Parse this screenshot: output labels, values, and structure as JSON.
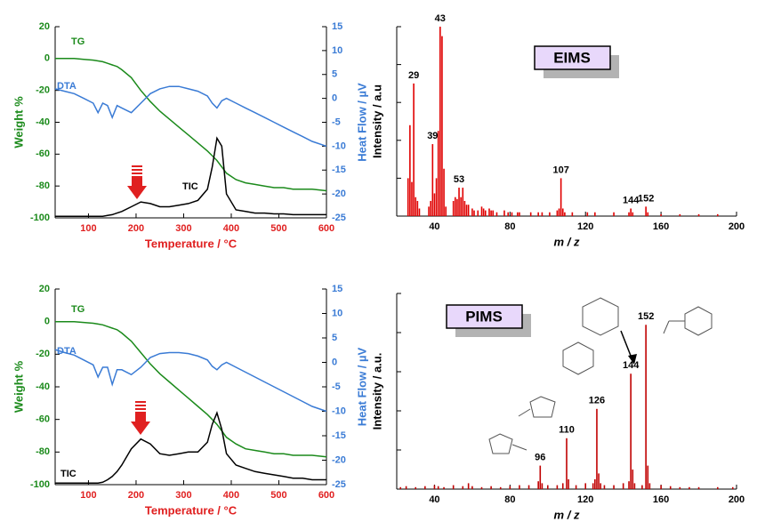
{
  "chart_data": [
    {
      "type": "line",
      "xlabel": "Temperature / °C",
      "ylabel": "Weight %",
      "y2label": "Heat Flow / µV",
      "xlim": [
        30,
        600
      ],
      "xticks": [
        100,
        200,
        300,
        400,
        500,
        600
      ],
      "ylim": [
        -100,
        20
      ],
      "yticks": [
        -100,
        -80,
        -60,
        -40,
        -20,
        0,
        20
      ],
      "y2lim": [
        -25,
        15
      ],
      "y2ticks": [
        -25,
        -20,
        -15,
        -10,
        -5,
        0,
        5,
        10,
        15
      ],
      "x": [
        30,
        50,
        70,
        90,
        110,
        120,
        130,
        140,
        150,
        160,
        170,
        190,
        210,
        230,
        250,
        270,
        290,
        310,
        330,
        350,
        360,
        370,
        380,
        390,
        410,
        430,
        450,
        470,
        490,
        510,
        530,
        550,
        570,
        600
      ],
      "series": [
        {
          "name": "TG",
          "color": "#1b8a1b",
          "values": [
            0,
            0,
            0,
            -0.5,
            -1,
            -1.5,
            -2,
            -3,
            -4,
            -5,
            -7,
            -12,
            -20,
            -27,
            -33,
            -38,
            -43,
            -48,
            -53,
            -58,
            -61,
            -64,
            -68,
            -72,
            -76,
            -78,
            -79,
            -80,
            -81,
            -81,
            -82,
            -82,
            -82,
            -83
          ]
        },
        {
          "name": "DTA",
          "color": "#3a7bd5",
          "axis": "y2",
          "values": [
            2,
            1.5,
            1,
            0,
            -1,
            -3,
            -1,
            -1.5,
            -4,
            -1.5,
            -2,
            -3,
            -1,
            1,
            2,
            2.5,
            2.5,
            2,
            1.5,
            0.5,
            -1,
            -2,
            -0.5,
            0,
            -1,
            -2,
            -3,
            -4,
            -5,
            -6,
            -7,
            -8,
            -9,
            -10
          ]
        },
        {
          "name": "TIC",
          "color": "#000000",
          "values": [
            -99,
            -99,
            -99,
            -99,
            -99,
            -99,
            -99,
            -98.5,
            -98,
            -97,
            -96,
            -93,
            -90,
            -91,
            -93,
            -93,
            -92,
            -91,
            -89,
            -82,
            -68,
            -50,
            -55,
            -85,
            -95,
            -96,
            -97,
            -97,
            -97.5,
            -97.5,
            -98,
            -98,
            -98,
            -98
          ]
        }
      ]
    },
    {
      "type": "bar",
      "title": "EIMS",
      "xlabel": "m / z",
      "ylabel": "Intensity / a.u",
      "color": "#e00000",
      "xlim": [
        20,
        200
      ],
      "xticks": [
        40,
        80,
        120,
        160,
        200
      ],
      "ylim": [
        0,
        100
      ],
      "yticks": [
        0,
        20,
        40,
        60,
        80,
        100
      ],
      "x": [
        26,
        27,
        28,
        29,
        30,
        31,
        32,
        37,
        38,
        39,
        40,
        41,
        42,
        43,
        44,
        45,
        46,
        50,
        51,
        52,
        53,
        54,
        55,
        56,
        57,
        58,
        60,
        61,
        63,
        65,
        66,
        67,
        69,
        70,
        71,
        73,
        77,
        79,
        81,
        84,
        85,
        91,
        95,
        97,
        101,
        105,
        106,
        107,
        108,
        109,
        113,
        121,
        125,
        135,
        143,
        144,
        145,
        152,
        153,
        160,
        170,
        180,
        190
      ],
      "values": [
        20,
        48,
        18,
        70,
        10,
        8,
        4,
        5,
        8,
        38,
        12,
        20,
        45,
        100,
        95,
        25,
        5,
        8,
        10,
        9,
        15,
        10,
        15,
        8,
        6,
        6,
        4,
        3,
        3,
        5,
        4,
        3,
        4,
        3,
        3,
        2,
        3,
        2,
        2,
        2,
        2,
        2,
        2,
        2,
        2,
        3,
        4,
        20,
        4,
        2,
        2,
        2,
        2,
        2,
        2,
        4,
        2,
        5,
        2,
        1,
        1,
        1,
        1
      ],
      "peak_labels": [
        29,
        39,
        43,
        53,
        107,
        144,
        152
      ]
    },
    {
      "type": "line",
      "xlabel": "Temperature / °C",
      "ylabel": "Weight %",
      "y2label": "Heat Flow / µV",
      "xlim": [
        30,
        600
      ],
      "xticks": [
        100,
        200,
        300,
        400,
        500,
        600
      ],
      "ylim": [
        -100,
        20
      ],
      "yticks": [
        -100,
        -80,
        -60,
        -40,
        -20,
        0,
        20
      ],
      "y2lim": [
        -25,
        15
      ],
      "y2ticks": [
        -25,
        -20,
        -15,
        -10,
        -5,
        0,
        5,
        10,
        15
      ],
      "x": [
        30,
        50,
        70,
        90,
        110,
        120,
        130,
        140,
        150,
        160,
        170,
        190,
        210,
        230,
        250,
        270,
        290,
        310,
        330,
        350,
        360,
        370,
        380,
        390,
        410,
        430,
        450,
        470,
        490,
        510,
        530,
        550,
        570,
        600
      ],
      "series": [
        {
          "name": "TG",
          "color": "#1b8a1b",
          "values": [
            0,
            0,
            0,
            -0.5,
            -1,
            -1.5,
            -2,
            -3,
            -4,
            -5,
            -7,
            -12,
            -19,
            -26,
            -32,
            -37,
            -42,
            -47,
            -52,
            -57,
            -60,
            -63,
            -67,
            -71,
            -75,
            -78,
            -79,
            -80,
            -81,
            -81,
            -82,
            -82,
            -82,
            -83
          ]
        },
        {
          "name": "DTA",
          "color": "#3a7bd5",
          "axis": "y2",
          "values": [
            2.6,
            2,
            1.5,
            0.5,
            -0.5,
            -3,
            -1,
            -1,
            -4.5,
            -1.5,
            -1.5,
            -2.5,
            -1,
            1,
            1.8,
            2,
            2,
            1.8,
            1.3,
            0.5,
            -0.8,
            -1.5,
            -0.5,
            0,
            -1,
            -2,
            -3,
            -4,
            -5,
            -6,
            -7,
            -8,
            -9,
            -10
          ]
        },
        {
          "name": "TIC",
          "color": "#000000",
          "values": [
            -99,
            -99,
            -99,
            -99,
            -99,
            -99,
            -98.5,
            -97,
            -95,
            -92,
            -88,
            -78,
            -72,
            -75,
            -81,
            -82,
            -81,
            -80,
            -80,
            -74,
            -63,
            -56,
            -66,
            -81,
            -88,
            -90,
            -92,
            -93,
            -94,
            -95,
            -96,
            -96,
            -97,
            -97
          ]
        }
      ]
    },
    {
      "type": "bar",
      "title": "PIMS",
      "xlabel": "m / z",
      "ylabel": "Intensity / a.u.",
      "color": "#c00000",
      "xlim": [
        20,
        200
      ],
      "xticks": [
        40,
        80,
        120,
        160,
        200
      ],
      "ylim": [
        0,
        100
      ],
      "yticks": [
        0,
        20,
        40,
        60,
        80,
        100
      ],
      "x": [
        22,
        25,
        30,
        35,
        40,
        42,
        45,
        50,
        55,
        58,
        60,
        65,
        70,
        75,
        80,
        85,
        90,
        95,
        96,
        97,
        100,
        105,
        108,
        110,
        111,
        115,
        120,
        124,
        125,
        126,
        127,
        128,
        130,
        135,
        140,
        143,
        144,
        145,
        146,
        150,
        152,
        153,
        154,
        160,
        165,
        170,
        175,
        180,
        190,
        198
      ],
      "values": [
        1,
        1.5,
        1,
        1.5,
        2,
        1.5,
        1,
        2,
        1.5,
        3,
        1.5,
        1,
        1.5,
        1,
        1.5,
        2,
        2,
        4,
        12,
        3,
        2,
        2,
        3,
        26,
        5,
        2,
        3,
        3,
        5,
        41,
        8,
        3,
        2,
        2,
        3,
        4,
        59,
        10,
        3,
        2,
        84,
        12,
        3,
        2,
        1.5,
        1,
        1,
        1,
        1,
        1
      ],
      "peak_labels": [
        96,
        110,
        126,
        144,
        152
      ]
    }
  ]
}
